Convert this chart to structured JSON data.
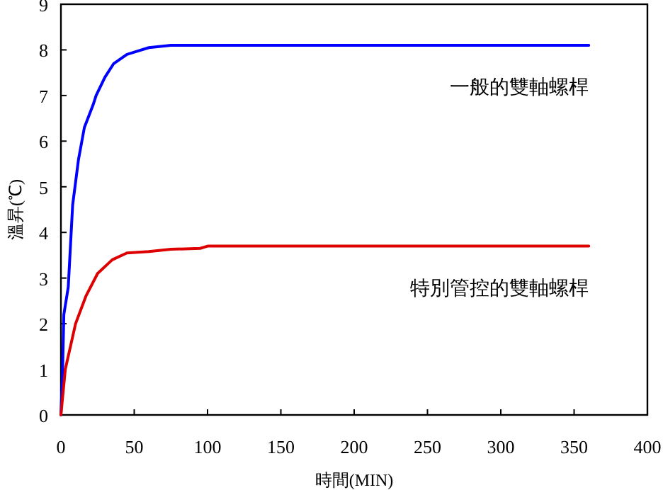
{
  "chart_data": {
    "type": "line",
    "xlabel": "時間(MIN)",
    "ylabel": "溫昇(℃)",
    "xlim": [
      0,
      400
    ],
    "xticks": [
      0,
      50,
      100,
      150,
      200,
      250,
      300,
      350,
      400
    ],
    "ylim": [
      0,
      9
    ],
    "yticks": [
      0,
      1,
      2,
      3,
      4,
      5,
      6,
      7,
      8,
      9
    ],
    "grid": false,
    "marker": "none",
    "line_style": "solid",
    "series": [
      {
        "name": "一般的雙軸螺桿",
        "color": "#0000ff",
        "x": [
          0,
          1,
          2,
          5,
          8,
          12,
          16,
          22,
          24,
          30,
          36,
          45,
          50,
          60,
          75,
          360
        ],
        "values": [
          0,
          0.8,
          2.2,
          2.8,
          4.6,
          5.6,
          6.3,
          6.8,
          7.0,
          7.4,
          7.7,
          7.9,
          7.95,
          8.05,
          8.1,
          8.1
        ]
      },
      {
        "name": "特別管控的雙軸螺桿",
        "color": "#dd0000",
        "x": [
          0,
          3,
          10,
          17,
          25,
          35,
          45,
          60,
          75,
          95,
          100,
          360
        ],
        "values": [
          0,
          1.0,
          2.0,
          2.6,
          3.1,
          3.4,
          3.55,
          3.58,
          3.63,
          3.65,
          3.7,
          3.7
        ]
      }
    ]
  }
}
